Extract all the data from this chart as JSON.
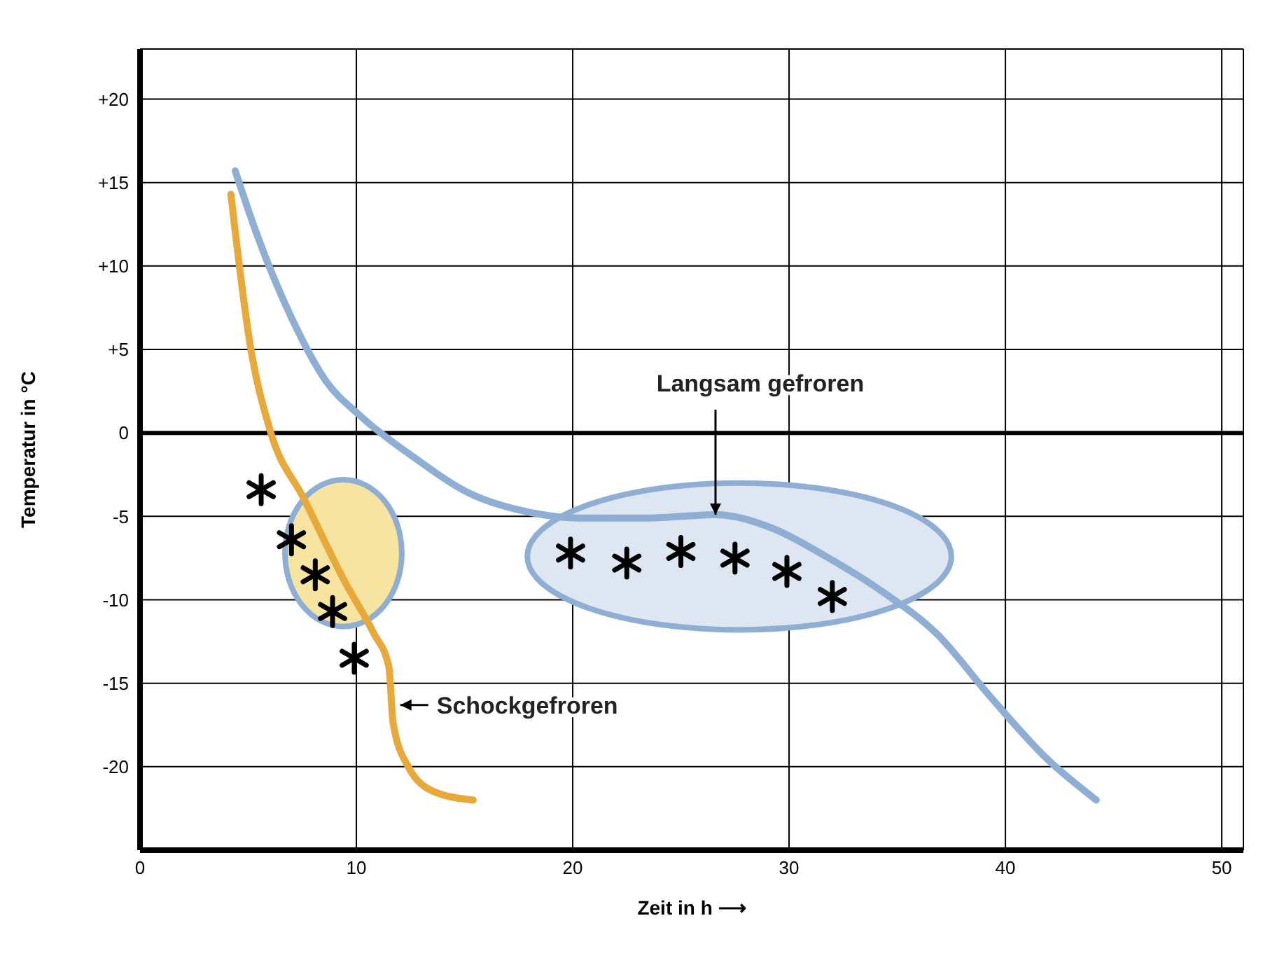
{
  "chart_data": {
    "type": "line",
    "xlabel": "Zeit in h ⟶",
    "ylabel": "Temperatur in °C",
    "xlim": [
      0,
      51
    ],
    "ylim": [
      -25,
      23
    ],
    "xticks": [
      0,
      10,
      20,
      30,
      40,
      50
    ],
    "yticks": [
      {
        "value": 20,
        "label": "+20"
      },
      {
        "value": 15,
        "label": "+15"
      },
      {
        "value": 10,
        "label": "+10"
      },
      {
        "value": 5,
        "label": "+5"
      },
      0,
      -5,
      -10,
      -15,
      -20
    ],
    "grid": true,
    "legend": false,
    "marker": "none",
    "line_style": "solid",
    "ref_lines": [
      {
        "axis": "y",
        "value": 0,
        "color": "#000000"
      }
    ],
    "series": [
      {
        "color": "#e8a83a",
        "x": [
          4.2,
          5.1,
          6.0,
          7.6,
          9.5,
          10.8,
          11.5,
          11.7,
          12.4,
          13.6,
          15.4
        ],
        "values": [
          14.3,
          5.2,
          0.2,
          -4,
          -9,
          -12,
          -14,
          -17.4,
          -20,
          -21.5,
          -22
        ]
      },
      {
        "color": "#8eaed4",
        "x": [
          4.4,
          5.4,
          7.0,
          8.6,
          10.2,
          12.7,
          15.2,
          17.8,
          20.3,
          23.5,
          26.6,
          29.2,
          31.7,
          34.3,
          36.8,
          39.3,
          41.9,
          44.2
        ],
        "values": [
          15.7,
          11.9,
          6.9,
          3.1,
          1.0,
          -1.5,
          -3.6,
          -4.7,
          -5.1,
          -5.1,
          -4.9,
          -5.7,
          -7.4,
          -9.5,
          -12,
          -15.8,
          -19.5,
          -22
        ]
      }
    ],
    "annotations": [
      {
        "text": "Langsam gefroren",
        "x": 26.6,
        "y": -4.9
      },
      {
        "text": "Schockgefroren",
        "x": 11.9,
        "y": -16.3
      }
    ]
  }
}
